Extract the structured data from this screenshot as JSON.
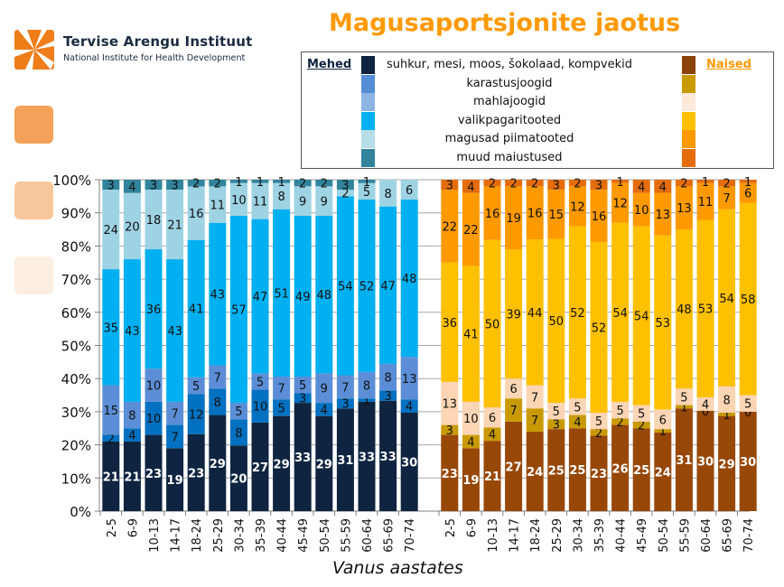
{
  "header": {
    "logo_title": "Tervise Arengu Instituut",
    "logo_subtitle": "National Institute for Health Development",
    "title": "Magusaportsjonite jaotus"
  },
  "legend": {
    "men_label": "Mehed",
    "women_label": "Naised",
    "items": [
      {
        "label": "suhkur, mesi, moos, šokolaad, kompvekid",
        "men_color": "#0F2440",
        "women_color": "#8B4208"
      },
      {
        "label": "karastusjoogid",
        "men_color": "#558ED5",
        "women_color": "#C99A00"
      },
      {
        "label": "mahlajoogid",
        "men_color": "#8EB4E3",
        "women_color": "#FDE9D9"
      },
      {
        "label": "valikpagaritooted",
        "men_color": "#00B0F0",
        "women_color": "#FFC000"
      },
      {
        "label": "magusad piimatooted",
        "men_color": "#B7DEE8",
        "women_color": "#FF9900"
      },
      {
        "label": "muud maiustused",
        "men_color": "#31849B",
        "women_color": "#E46C0A"
      }
    ]
  },
  "chart_data": {
    "type": "bar",
    "stacked": true,
    "percent": true,
    "title": "Magusaportsjonite jaotus",
    "xlabel": "Vanus aastates",
    "ylabel": "",
    "ylim": [
      0,
      100
    ],
    "yticks": [
      "0%",
      "10%",
      "20%",
      "30%",
      "40%",
      "50%",
      "60%",
      "70%",
      "80%",
      "90%",
      "100%"
    ],
    "categories": [
      "2-5",
      "6-9",
      "10-13",
      "14-17",
      "18-24",
      "25-29",
      "30-34",
      "35-39",
      "40-44",
      "45-49",
      "50-54",
      "55-59",
      "60-64",
      "65-69",
      "70-74"
    ],
    "groups": [
      {
        "name": "Mehed",
        "series": [
          {
            "name": "suhkur, mesi, moos, šokolaad, kompvekid",
            "color": "#0F2440",
            "label_color": "#ffffff",
            "values": [
              21,
              21,
              23,
              19,
              23,
              29,
              20,
              27,
              29,
              33,
              29,
              31,
              33,
              33,
              30
            ]
          },
          {
            "name": "karastusjoogid",
            "color": "#0070C0",
            "label_color": "#111111",
            "values": [
              2,
              4,
              10,
              7,
              12,
              8,
              8,
              10,
              5,
              3,
              4,
              3,
              1,
              3,
              4
            ]
          },
          {
            "name": "mahlajoogid",
            "color": "#5B8ED6",
            "label_color": "#111111",
            "values": [
              15,
              8,
              10,
              7,
              5,
              7,
              5,
              5,
              7,
              5,
              9,
              7,
              8,
              8,
              13
            ]
          },
          {
            "name": "valikpagaritooted",
            "color": "#00B0F0",
            "label_color": "#111111",
            "values": [
              35,
              43,
              36,
              43,
              41,
              43,
              57,
              47,
              51,
              49,
              48,
              54,
              52,
              47,
              48
            ]
          },
          {
            "name": "magusad piimatooted",
            "color": "#9ED3E4",
            "label_color": "#111111",
            "values": [
              24,
              20,
              18,
              21,
              16,
              11,
              10,
              11,
              8,
              9,
              9,
              2,
              5,
              8,
              6
            ]
          },
          {
            "name": "muud maiustused",
            "color": "#31849B",
            "label_color": "#111111",
            "values": [
              3,
              4,
              3,
              3,
              2,
              2,
              1,
              1,
              1,
              2,
              2,
              3,
              1,
              0,
              0
            ]
          }
        ]
      },
      {
        "name": "Naised",
        "series": [
          {
            "name": "suhkur, mesi, moos, šokolaad, kompvekid",
            "color": "#974706",
            "label_color": "#ffffff",
            "values": [
              23,
              19,
              21,
              27,
              24,
              25,
              25,
              23,
              26,
              25,
              24,
              31,
              30,
              29,
              30
            ]
          },
          {
            "name": "karastusjoogid",
            "color": "#C99A00",
            "label_color": "#111111",
            "values": [
              3,
              4,
              4,
              7,
              7,
              3,
              4,
              2,
              2,
              2,
              1,
              1,
              0,
              1,
              0
            ]
          },
          {
            "name": "mahlajoogid",
            "color": "#FCD5B4",
            "label_color": "#111111",
            "values": [
              13,
              10,
              6,
              6,
              7,
              5,
              5,
              5,
              5,
              5,
              6,
              5,
              4,
              8,
              5
            ]
          },
          {
            "name": "valikpagaritooted",
            "color": "#FFC000",
            "label_color": "#111111",
            "values": [
              36,
              41,
              50,
              39,
              44,
              50,
              52,
              52,
              54,
              54,
              53,
              48,
              53,
              54,
              58
            ]
          },
          {
            "name": "magusad piimatooted",
            "color": "#FF9900",
            "label_color": "#111111",
            "values": [
              22,
              22,
              16,
              19,
              16,
              15,
              12,
              16,
              12,
              10,
              13,
              13,
              11,
              7,
              6
            ]
          },
          {
            "name": "muud maiustused",
            "color": "#E46C0A",
            "label_color": "#111111",
            "values": [
              3,
              4,
              2,
              2,
              2,
              3,
              2,
              3,
              1,
              4,
              4,
              2,
              1,
              2,
              1
            ]
          }
        ]
      }
    ],
    "grid": true,
    "legend_position": "top-right"
  },
  "decorations": {
    "squares": [
      "#F4A259",
      "#F8C89C",
      "#FDEEE2"
    ]
  }
}
